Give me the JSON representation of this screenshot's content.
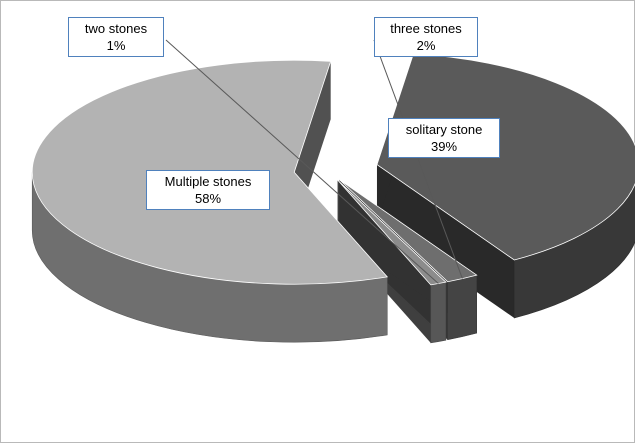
{
  "chart_data": {
    "type": "pie",
    "style": "3d-exploded",
    "slices": [
      {
        "label": "solitary stone",
        "value": 39,
        "value_label": "39%",
        "color": "#5a5a5a"
      },
      {
        "label": "three stones",
        "value": 2,
        "value_label": "2%",
        "color": "#6e6e6e"
      },
      {
        "label": "two stones",
        "value": 1,
        "value_label": "1%",
        "color": "#8c8c8c"
      },
      {
        "label": "Multiple stones",
        "value": 58,
        "value_label": "58%",
        "color": "#b3b3b3"
      }
    ],
    "legend": "none",
    "label_border_color": "#4f81bd"
  }
}
